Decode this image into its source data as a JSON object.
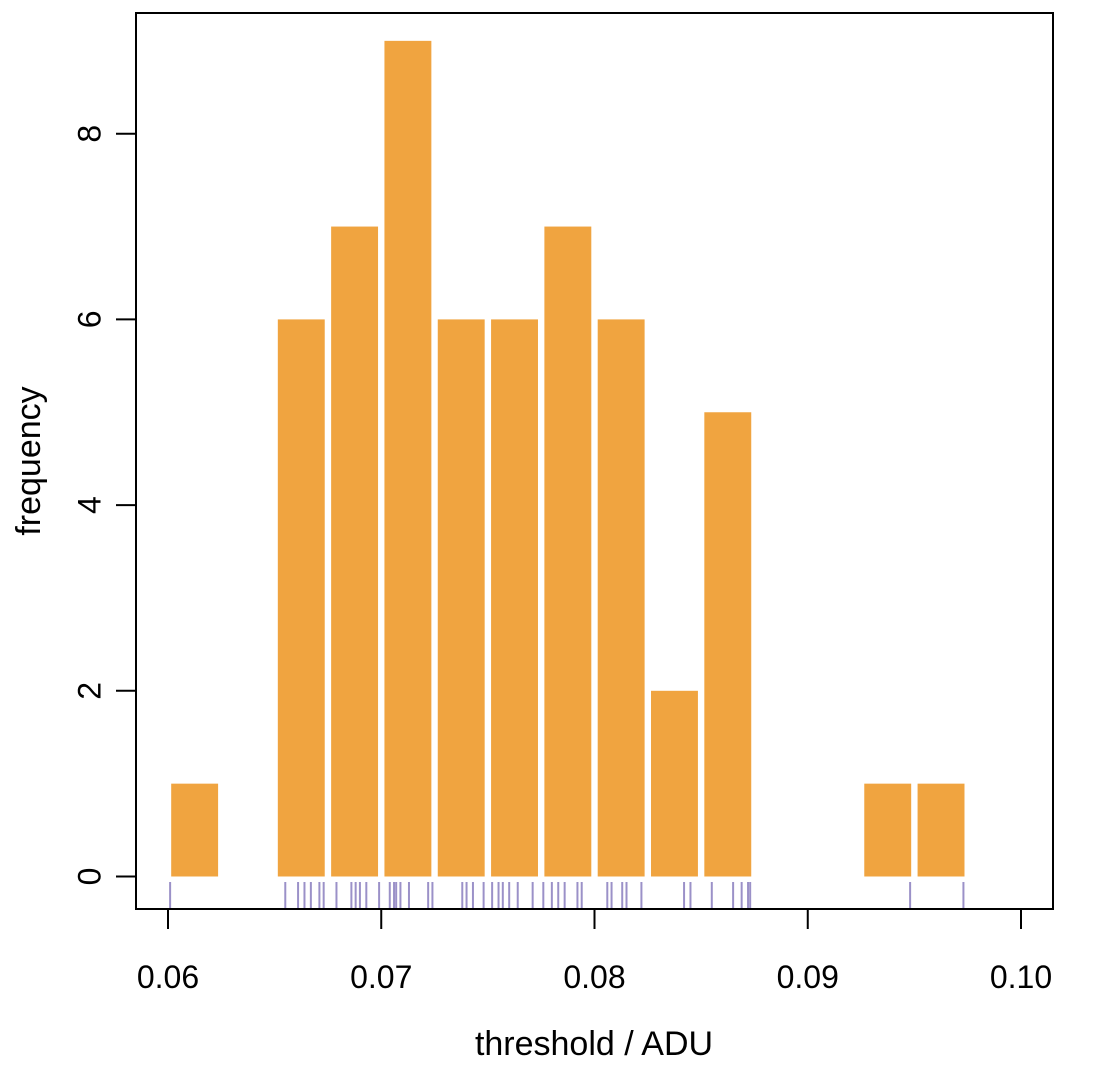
{
  "chart_data": {
    "type": "bar",
    "xlabel": "threshold / ADU",
    "ylabel": "frequency",
    "xlim": [
      0.0585,
      0.1015
    ],
    "ylim": [
      -0.35,
      9.3
    ],
    "x_ticks": [
      0.06,
      0.07,
      0.08,
      0.09,
      0.1
    ],
    "x_tick_labels": [
      "0.06",
      "0.07",
      "0.08",
      "0.09",
      "0.10"
    ],
    "y_ticks": [
      0,
      2,
      4,
      6,
      8
    ],
    "y_tick_labels": [
      "0",
      "2",
      "4",
      "6",
      "8"
    ],
    "bin_width": 0.0025,
    "bins": [
      {
        "x0": 0.06,
        "x1": 0.0625,
        "count": 1
      },
      {
        "x0": 0.0625,
        "x1": 0.065,
        "count": 0
      },
      {
        "x0": 0.065,
        "x1": 0.0675,
        "count": 6
      },
      {
        "x0": 0.0675,
        "x1": 0.07,
        "count": 7
      },
      {
        "x0": 0.07,
        "x1": 0.0725,
        "count": 9
      },
      {
        "x0": 0.0725,
        "x1": 0.075,
        "count": 6
      },
      {
        "x0": 0.075,
        "x1": 0.0775,
        "count": 6
      },
      {
        "x0": 0.0775,
        "x1": 0.08,
        "count": 7
      },
      {
        "x0": 0.08,
        "x1": 0.0825,
        "count": 6
      },
      {
        "x0": 0.0825,
        "x1": 0.085,
        "count": 2
      },
      {
        "x0": 0.085,
        "x1": 0.0875,
        "count": 5
      },
      {
        "x0": 0.0875,
        "x1": 0.09,
        "count": 0
      },
      {
        "x0": 0.09,
        "x1": 0.0925,
        "count": 0
      },
      {
        "x0": 0.0925,
        "x1": 0.095,
        "count": 1
      },
      {
        "x0": 0.095,
        "x1": 0.0975,
        "count": 1
      }
    ],
    "rug": [
      0.0601,
      0.0655,
      0.0661,
      0.0664,
      0.0667,
      0.0671,
      0.0673,
      0.0679,
      0.0686,
      0.0688,
      0.069,
      0.0693,
      0.0699,
      0.0704,
      0.0706,
      0.0707,
      0.0709,
      0.0713,
      0.0722,
      0.0724,
      0.0738,
      0.074,
      0.0743,
      0.0748,
      0.0752,
      0.0755,
      0.0757,
      0.076,
      0.0764,
      0.0771,
      0.0776,
      0.078,
      0.0783,
      0.0786,
      0.0792,
      0.0794,
      0.0806,
      0.0808,
      0.0813,
      0.0815,
      0.0822,
      0.0842,
      0.0845,
      0.0855,
      0.0865,
      0.0869,
      0.0872,
      0.0873,
      0.0948,
      0.0973
    ],
    "colors": {
      "bar": "#F0A440",
      "rug": "#9B91C8",
      "axis": "#000000",
      "background": "#FFFFFF"
    }
  }
}
